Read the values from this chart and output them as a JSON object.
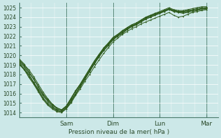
{
  "bg_color": "#cce8e8",
  "grid_color": "#ffffff",
  "line_color": "#2d5a1b",
  "marker_color": "#2d5a1b",
  "xlabel": "Pression niveau de la mer( hPa )",
  "ylim": [
    1013.5,
    1025.5
  ],
  "yticks": [
    1014,
    1015,
    1016,
    1017,
    1018,
    1019,
    1020,
    1021,
    1022,
    1023,
    1024,
    1025
  ],
  "day_labels": [
    "Sam",
    "Dim",
    "Lun",
    "Mar"
  ],
  "day_positions": [
    1,
    2,
    3,
    4
  ],
  "xlim": [
    0,
    4.15
  ],
  "series": [
    [
      1019.0,
      1018.5,
      1018.0,
      1017.2,
      1016.5,
      1015.8,
      1015.2,
      1014.7,
      1014.2,
      1014.1,
      1014.4,
      1015.0,
      1015.8,
      1016.5,
      1017.3,
      1018.0,
      1018.8,
      1019.5,
      1020.2,
      1020.8,
      1021.4,
      1021.8,
      1022.2,
      1022.5,
      1022.8,
      1023.0,
      1023.3,
      1023.5,
      1023.7,
      1023.9,
      1024.1,
      1024.3,
      1024.5,
      1024.2,
      1024.0,
      1024.1,
      1024.3,
      1024.5,
      1024.6,
      1024.7,
      1024.8
    ],
    [
      1019.3,
      1018.8,
      1018.0,
      1017.2,
      1016.4,
      1015.6,
      1015.0,
      1014.6,
      1014.3,
      1014.2,
      1014.6,
      1015.3,
      1016.0,
      1016.7,
      1017.5,
      1018.3,
      1019.1,
      1019.8,
      1020.5,
      1021.0,
      1021.6,
      1022.0,
      1022.3,
      1022.7,
      1023.0,
      1023.2,
      1023.5,
      1023.8,
      1024.0,
      1024.2,
      1024.4,
      1024.6,
      1024.8,
      1024.6,
      1024.5,
      1024.5,
      1024.6,
      1024.7,
      1024.8,
      1024.9,
      1024.9
    ],
    [
      1019.5,
      1019.0,
      1018.5,
      1017.8,
      1017.0,
      1016.2,
      1015.5,
      1014.9,
      1014.5,
      1014.3,
      1014.7,
      1015.5,
      1016.3,
      1017.0,
      1017.8,
      1018.6,
      1019.4,
      1020.1,
      1020.7,
      1021.3,
      1021.9,
      1022.2,
      1022.5,
      1022.9,
      1023.2,
      1023.4,
      1023.7,
      1024.0,
      1024.2,
      1024.4,
      1024.5,
      1024.7,
      1024.9,
      1024.7,
      1024.6,
      1024.6,
      1024.7,
      1024.8,
      1024.9,
      1025.0,
      1025.0
    ],
    [
      1019.2,
      1018.6,
      1017.8,
      1017.1,
      1016.3,
      1015.5,
      1014.9,
      1014.5,
      1014.2,
      1014.1,
      1014.5,
      1015.2,
      1016.0,
      1016.8,
      1017.6,
      1018.4,
      1019.2,
      1020.0,
      1020.6,
      1021.2,
      1021.8,
      1022.1,
      1022.4,
      1022.8,
      1023.1,
      1023.3,
      1023.6,
      1023.9,
      1024.1,
      1024.3,
      1024.5,
      1024.7,
      1024.9,
      1024.7,
      1024.6,
      1024.5,
      1024.6,
      1024.7,
      1024.8,
      1024.9,
      1024.9
    ],
    [
      1019.4,
      1018.9,
      1018.2,
      1017.5,
      1016.7,
      1015.9,
      1015.3,
      1014.8,
      1014.4,
      1014.2,
      1014.6,
      1015.4,
      1016.2,
      1016.9,
      1017.7,
      1018.5,
      1019.3,
      1020.0,
      1020.7,
      1021.2,
      1021.7,
      1022.1,
      1022.5,
      1022.8,
      1023.1,
      1023.3,
      1023.6,
      1023.9,
      1024.1,
      1024.3,
      1024.5,
      1024.7,
      1024.9,
      1024.7,
      1024.6,
      1024.6,
      1024.7,
      1024.7,
      1024.8,
      1024.9,
      1025.0
    ],
    [
      1019.1,
      1018.5,
      1017.7,
      1017.0,
      1016.2,
      1015.4,
      1014.8,
      1014.4,
      1014.1,
      1014.0,
      1014.4,
      1015.1,
      1015.9,
      1016.7,
      1017.5,
      1018.3,
      1019.1,
      1019.9,
      1020.5,
      1021.1,
      1021.7,
      1022.0,
      1022.3,
      1022.7,
      1023.0,
      1023.2,
      1023.5,
      1023.8,
      1024.0,
      1024.2,
      1024.4,
      1024.6,
      1024.8,
      1024.6,
      1024.5,
      1024.4,
      1024.5,
      1024.6,
      1024.7,
      1024.8,
      1024.8
    ],
    [
      1019.6,
      1019.1,
      1018.3,
      1017.6,
      1016.8,
      1016.0,
      1015.4,
      1014.9,
      1014.5,
      1014.3,
      1014.7,
      1015.5,
      1016.3,
      1017.0,
      1017.8,
      1018.6,
      1019.4,
      1020.1,
      1020.8,
      1021.3,
      1021.8,
      1022.2,
      1022.6,
      1022.9,
      1023.2,
      1023.4,
      1023.7,
      1024.0,
      1024.2,
      1024.4,
      1024.6,
      1024.8,
      1025.0,
      1024.8,
      1024.7,
      1024.7,
      1024.8,
      1024.9,
      1025.0,
      1025.1,
      1025.1
    ]
  ]
}
